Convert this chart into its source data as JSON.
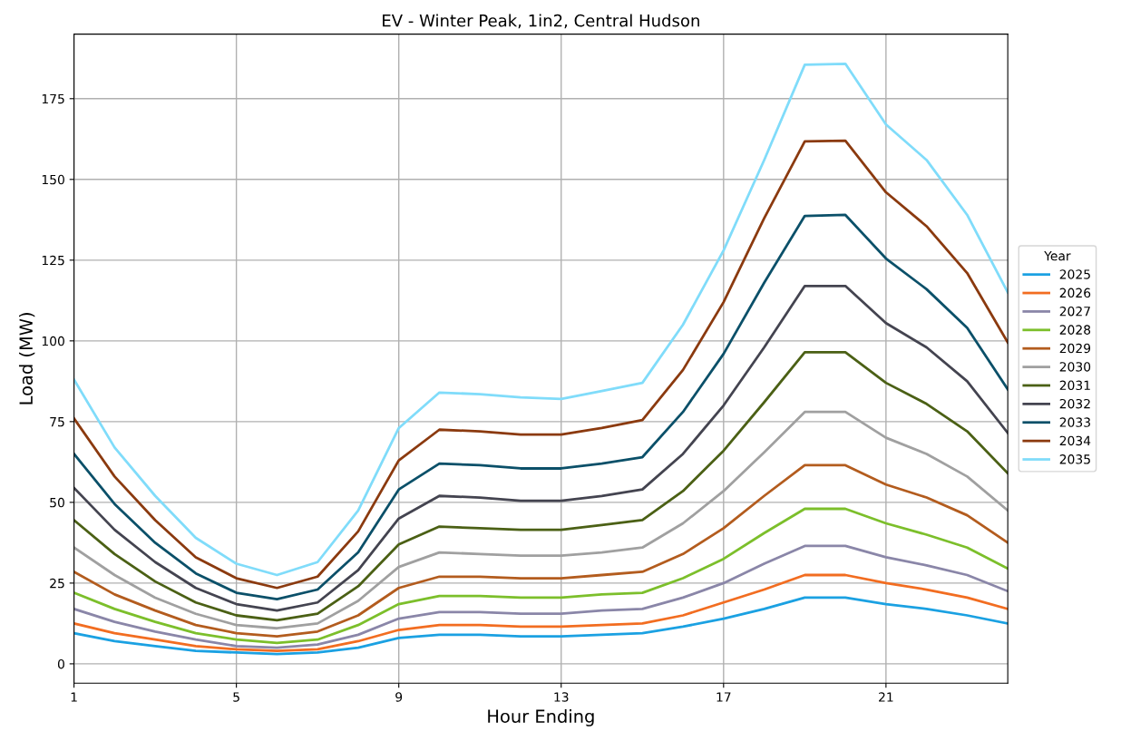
{
  "chart_data": {
    "type": "line",
    "title": "EV - Winter Peak, 1in2, Central Hudson",
    "xlabel": "Hour Ending",
    "ylabel": "Load (MW)",
    "legend_title": "Year",
    "legend": "right",
    "grid": true,
    "x": [
      1,
      2,
      3,
      4,
      5,
      6,
      7,
      8,
      9,
      10,
      11,
      12,
      13,
      14,
      15,
      16,
      17,
      18,
      19,
      20,
      21,
      22,
      23,
      24
    ],
    "xlim": [
      1,
      24
    ],
    "xticks": [
      1,
      5,
      9,
      13,
      17,
      21
    ],
    "ylim": [
      -6,
      195
    ],
    "yticks": [
      0,
      25,
      50,
      75,
      100,
      125,
      150,
      175
    ],
    "series": [
      {
        "name": "2025",
        "color": "#1ba1e2",
        "values": [
          9.5,
          7,
          5.5,
          4,
          3.5,
          3,
          3.5,
          5,
          8,
          9,
          9,
          8.5,
          8.5,
          9,
          9.5,
          11.5,
          14,
          17,
          20.5,
          20.5,
          18.5,
          17,
          15,
          12.5
        ]
      },
      {
        "name": "2026",
        "color": "#f26d21",
        "values": [
          12.5,
          9.5,
          7.5,
          5.5,
          4.5,
          4,
          4.5,
          7,
          10.5,
          12,
          12,
          11.5,
          11.5,
          12,
          12.5,
          15,
          19,
          23,
          27.5,
          27.5,
          25,
          23,
          20.5,
          17
        ]
      },
      {
        "name": "2027",
        "color": "#8a86a8",
        "values": [
          17,
          13,
          10,
          7.5,
          5.5,
          5,
          6,
          9,
          14,
          16,
          16,
          15.5,
          15.5,
          16.5,
          17,
          20.5,
          25,
          31,
          36.5,
          36.5,
          33,
          30.5,
          27.5,
          22.5
        ]
      },
      {
        "name": "2028",
        "color": "#7cbf2b",
        "values": [
          22,
          17,
          13,
          9.5,
          7.5,
          6.5,
          7.5,
          12,
          18.5,
          21,
          21,
          20.5,
          20.5,
          21.5,
          22,
          26.5,
          32.5,
          40.5,
          48,
          48,
          43.5,
          40,
          36,
          29.5
        ]
      },
      {
        "name": "2029",
        "color": "#b35c1e",
        "values": [
          28.5,
          21.5,
          16.5,
          12,
          9.5,
          8.5,
          10,
          15,
          23.5,
          27,
          27,
          26.5,
          26.5,
          27.5,
          28.5,
          34,
          42,
          52,
          61.5,
          61.5,
          55.5,
          51.5,
          46,
          37.5
        ]
      },
      {
        "name": "2030",
        "color": "#a0a0a0",
        "values": [
          36,
          27.5,
          20.5,
          15.5,
          12,
          11,
          12.5,
          19.5,
          30,
          34.5,
          34,
          33.5,
          33.5,
          34.5,
          36,
          43.5,
          53.5,
          65.5,
          78,
          78,
          70,
          65,
          58,
          47.5
        ]
      },
      {
        "name": "2031",
        "color": "#4b6015",
        "values": [
          44.5,
          34,
          25.5,
          19,
          15,
          13.5,
          15.5,
          24,
          37,
          42.5,
          42,
          41.5,
          41.5,
          43,
          44.5,
          53.5,
          66,
          81,
          96.5,
          96.5,
          87,
          80.5,
          72,
          59
        ]
      },
      {
        "name": "2032",
        "color": "#444450",
        "values": [
          54.5,
          41.5,
          31.5,
          23.5,
          18.5,
          16.5,
          19,
          29,
          45,
          52,
          51.5,
          50.5,
          50.5,
          52,
          54,
          65,
          80,
          98,
          117,
          117,
          105.5,
          98,
          87.5,
          71.5
        ]
      },
      {
        "name": "2033",
        "color": "#0b5069",
        "values": [
          65,
          49.5,
          37.5,
          28,
          22,
          20,
          23,
          34.5,
          54,
          62,
          61.5,
          60.5,
          60.5,
          62,
          64,
          78,
          96,
          118,
          138.7,
          139,
          125.5,
          116,
          104,
          85
        ]
      },
      {
        "name": "2034",
        "color": "#8b3a0f",
        "values": [
          76,
          58,
          44.5,
          33,
          26.5,
          23.5,
          27,
          41,
          63,
          72.5,
          72,
          71,
          71,
          73,
          75.5,
          91,
          112,
          138,
          161.8,
          162,
          146,
          135.5,
          121,
          99.5
        ]
      },
      {
        "name": "2035",
        "color": "#80dcfa",
        "values": [
          88,
          67,
          52,
          39,
          31,
          27.5,
          31.5,
          47.5,
          73,
          84,
          83.5,
          82.5,
          82,
          84.5,
          87,
          105,
          128,
          156,
          185.5,
          185.8,
          167,
          156,
          139,
          115
        ]
      }
    ]
  }
}
